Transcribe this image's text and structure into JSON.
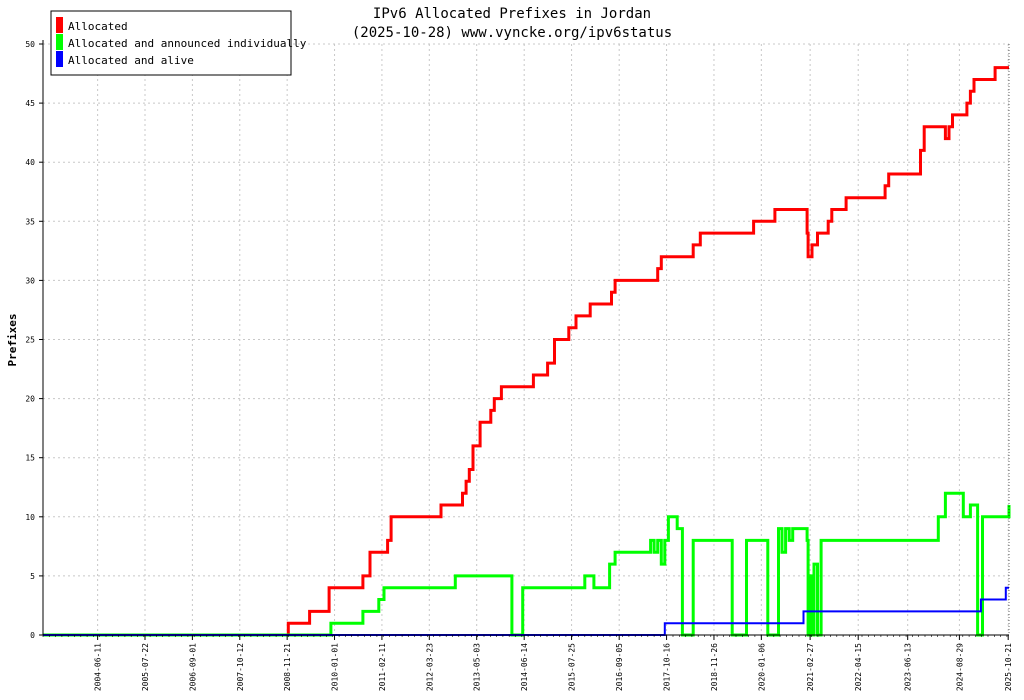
{
  "chart_data": {
    "type": "line",
    "title": "IPv6 Allocated Prefixes in Jordan",
    "subtitle": "(2025-10-28) www.vyncke.org/ipv6status",
    "ylabel": "Prefixes",
    "xlabel": "",
    "ylim": [
      0,
      50
    ],
    "xlim": [
      "2003-03-01",
      "2025-10-28"
    ],
    "grid": true,
    "legend_position": "top-left",
    "yticks": [
      "0",
      "5",
      "10",
      "15",
      "20",
      "25",
      "30",
      "35",
      "40",
      "45",
      "50"
    ],
    "xticks": [
      "2004-06-11",
      "2005-07-22",
      "2006-09-01",
      "2007-10-12",
      "2008-11-21",
      "2010-01-01",
      "2011-02-11",
      "2012-03-23",
      "2013-05-03",
      "2014-06-14",
      "2015-07-25",
      "2016-09-05",
      "2017-10-16",
      "2018-11-26",
      "2020-01-06",
      "2021-02-27",
      "2022-04-15",
      "2023-06-13",
      "2024-08-29",
      "2025-10-21"
    ],
    "series": [
      {
        "name": "Allocated",
        "color": "#ff0000",
        "points": [
          [
            "2003-03-01",
            0
          ],
          [
            "2008-12-01",
            1
          ],
          [
            "2009-06-01",
            2
          ],
          [
            "2009-11-15",
            4
          ],
          [
            "2010-09-01",
            5
          ],
          [
            "2010-11-01",
            7
          ],
          [
            "2011-04-01",
            8
          ],
          [
            "2011-05-01",
            10
          ],
          [
            "2012-07-01",
            11
          ],
          [
            "2013-01-01",
            12
          ],
          [
            "2013-02-01",
            13
          ],
          [
            "2013-03-01",
            14
          ],
          [
            "2013-04-01",
            16
          ],
          [
            "2013-06-01",
            18
          ],
          [
            "2013-09-01",
            19
          ],
          [
            "2013-10-01",
            20
          ],
          [
            "2013-12-01",
            21
          ],
          [
            "2014-09-01",
            22
          ],
          [
            "2015-01-01",
            23
          ],
          [
            "2015-03-01",
            25
          ],
          [
            "2015-07-01",
            26
          ],
          [
            "2015-09-01",
            27
          ],
          [
            "2016-01-01",
            28
          ],
          [
            "2016-07-01",
            29
          ],
          [
            "2016-08-01",
            30
          ],
          [
            "2017-08-01",
            31
          ],
          [
            "2017-09-01",
            32
          ],
          [
            "2018-06-01",
            33
          ],
          [
            "2018-08-01",
            34
          ],
          [
            "2019-11-01",
            35
          ],
          [
            "2020-05-01",
            36
          ],
          [
            "2021-02-01",
            34
          ],
          [
            "2021-02-10",
            32
          ],
          [
            "2021-03-15",
            33
          ],
          [
            "2021-05-01",
            34
          ],
          [
            "2021-08-01",
            35
          ],
          [
            "2021-09-01",
            36
          ],
          [
            "2022-01-01",
            37
          ],
          [
            "2022-12-01",
            38
          ],
          [
            "2023-01-01",
            39
          ],
          [
            "2023-10-01",
            41
          ],
          [
            "2023-11-01",
            43
          ],
          [
            "2024-05-01",
            42
          ],
          [
            "2024-06-01",
            43
          ],
          [
            "2024-07-01",
            44
          ],
          [
            "2024-11-01",
            45
          ],
          [
            "2024-12-01",
            46
          ],
          [
            "2025-01-01",
            47
          ],
          [
            "2025-07-01",
            48
          ],
          [
            "2025-10-28",
            48
          ]
        ]
      },
      {
        "name": "Allocated and announced individually",
        "color": "#00ff00",
        "points": [
          [
            "2003-03-01",
            0
          ],
          [
            "2009-12-01",
            1
          ],
          [
            "2010-09-01",
            2
          ],
          [
            "2011-01-15",
            3
          ],
          [
            "2011-03-01",
            4
          ],
          [
            "2012-11-01",
            5
          ],
          [
            "2014-03-01",
            0
          ],
          [
            "2014-06-01",
            4
          ],
          [
            "2015-11-15",
            5
          ],
          [
            "2016-02-01",
            4
          ],
          [
            "2016-06-15",
            6
          ],
          [
            "2016-08-01",
            7
          ],
          [
            "2017-06-01",
            8
          ],
          [
            "2017-07-01",
            7
          ],
          [
            "2017-08-01",
            8
          ],
          [
            "2017-09-01",
            6
          ],
          [
            "2017-10-01",
            8
          ],
          [
            "2017-11-01",
            10
          ],
          [
            "2018-01-15",
            9
          ],
          [
            "2018-03-01",
            0
          ],
          [
            "2018-06-01",
            8
          ],
          [
            "2019-05-01",
            0
          ],
          [
            "2019-09-01",
            8
          ],
          [
            "2020-03-01",
            0
          ],
          [
            "2020-06-01",
            9
          ],
          [
            "2020-07-01",
            7
          ],
          [
            "2020-08-01",
            9
          ],
          [
            "2020-09-01",
            8
          ],
          [
            "2020-10-01",
            9
          ],
          [
            "2021-02-01",
            8
          ],
          [
            "2021-02-10",
            0
          ],
          [
            "2021-03-01",
            5
          ],
          [
            "2021-03-15",
            0
          ],
          [
            "2021-04-01",
            6
          ],
          [
            "2021-05-01",
            0
          ],
          [
            "2021-06-01",
            8
          ],
          [
            "2024-03-01",
            10
          ],
          [
            "2024-05-01",
            12
          ],
          [
            "2024-10-01",
            10
          ],
          [
            "2024-12-01",
            11
          ],
          [
            "2025-02-01",
            0
          ],
          [
            "2025-03-15",
            10
          ],
          [
            "2025-10-28",
            11
          ]
        ]
      },
      {
        "name": "Allocated and alive",
        "color": "#0000ff",
        "points": [
          [
            "2003-03-01",
            0
          ],
          [
            "2017-10-01",
            1
          ],
          [
            "2021-01-01",
            2
          ],
          [
            "2025-03-01",
            3
          ],
          [
            "2025-10-01",
            4
          ],
          [
            "2025-10-28",
            4
          ]
        ]
      }
    ]
  }
}
